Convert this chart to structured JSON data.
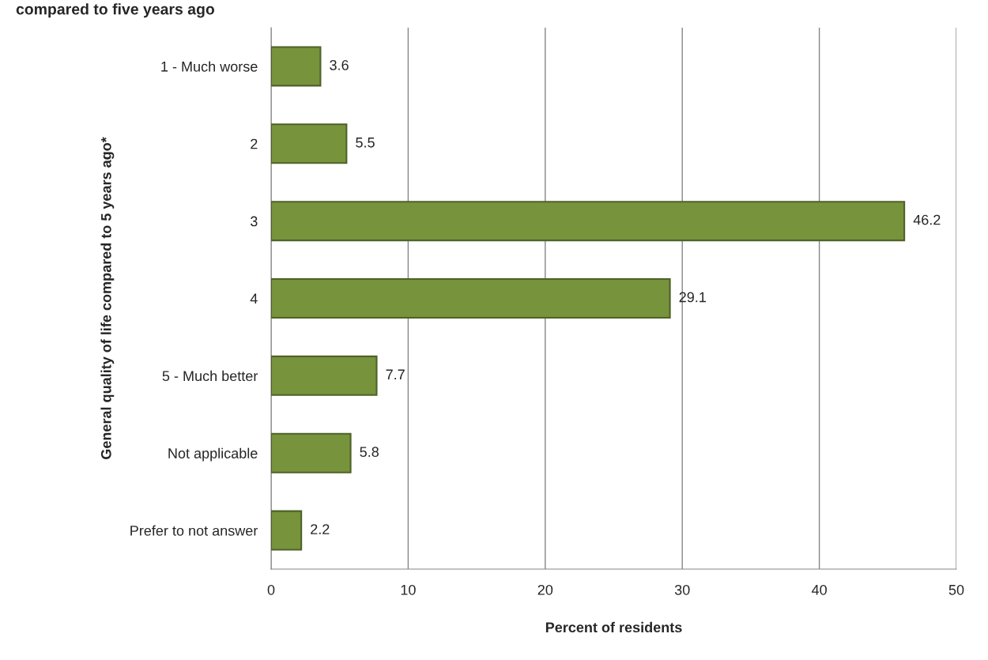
{
  "chart_data": {
    "type": "bar",
    "orientation": "horizontal",
    "title": "compared to five years ago",
    "xlabel": "Percent of residents",
    "ylabel": "General quality of life compared to 5 years ago*",
    "categories": [
      "1 - Much worse",
      "2",
      "3",
      "4",
      "5 - Much better",
      "Not applicable",
      "Prefer to not answer"
    ],
    "values": [
      3.6,
      5.5,
      46.2,
      29.1,
      7.7,
      5.8,
      2.2
    ],
    "color": "#77933c",
    "xlim": [
      0,
      50
    ],
    "xticks": [
      0,
      10,
      20,
      30,
      40,
      50
    ],
    "grid": "x",
    "data_labels": true
  }
}
